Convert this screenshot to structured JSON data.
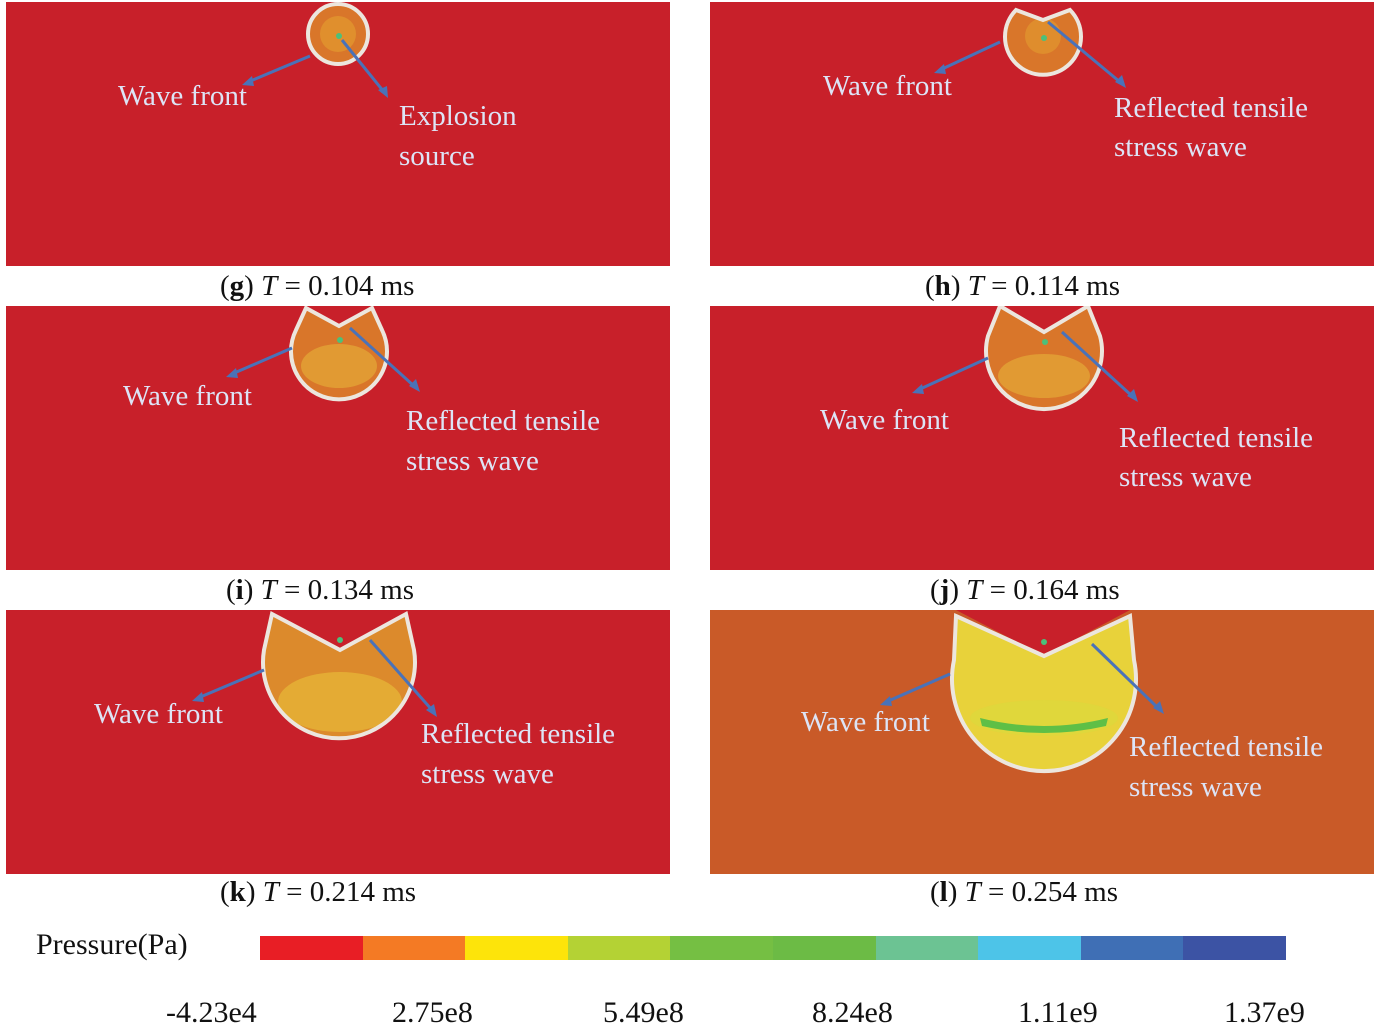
{
  "panels": [
    {
      "id": "g",
      "time": "0.104 ms",
      "wave_front": "Wave front",
      "arrow_label_1": "Explosion",
      "arrow_label_2": "source"
    },
    {
      "id": "h",
      "time": "0.114 ms",
      "wave_front": "Wave front",
      "arrow_label_1": "Reflected tensile",
      "arrow_label_2": "stress wave"
    },
    {
      "id": "i",
      "time": "0.134 ms",
      "wave_front": "Wave front",
      "arrow_label_1": "Reflected tensile",
      "arrow_label_2": "stress wave"
    },
    {
      "id": "j",
      "time": "0.164 ms",
      "wave_front": "Wave front",
      "arrow_label_1": "Reflected tensile",
      "arrow_label_2": "stress wave"
    },
    {
      "id": "k",
      "time": "0.214 ms",
      "wave_front": "Wave front",
      "arrow_label_1": "Reflected tensile",
      "arrow_label_2": "stress wave"
    },
    {
      "id": "l",
      "time": "0.254 ms",
      "wave_front": "Wave front",
      "arrow_label_1": "Reflected tensile",
      "arrow_label_2": "stress wave"
    }
  ],
  "caption_var": "T",
  "caption_eq": " = ",
  "colorbar": {
    "title": "Pressure(Pa)",
    "colors": [
      "#e81e25",
      "#f47a24",
      "#fde40a",
      "#b4d234",
      "#75bf43",
      "#6cbb45",
      "#6cc393",
      "#4dc4e8",
      "#3f6fb5",
      "#3c53a4"
    ],
    "ticks": [
      "-4.23e4",
      "2.75e8",
      "5.49e8",
      "8.24e8",
      "1.11e9",
      "1.37e9"
    ]
  },
  "colors": {
    "background_red": "#c8202a",
    "background_orange": "#c95a28",
    "arrow": "#4a72b8",
    "annotation_text": "#dde4f6"
  }
}
